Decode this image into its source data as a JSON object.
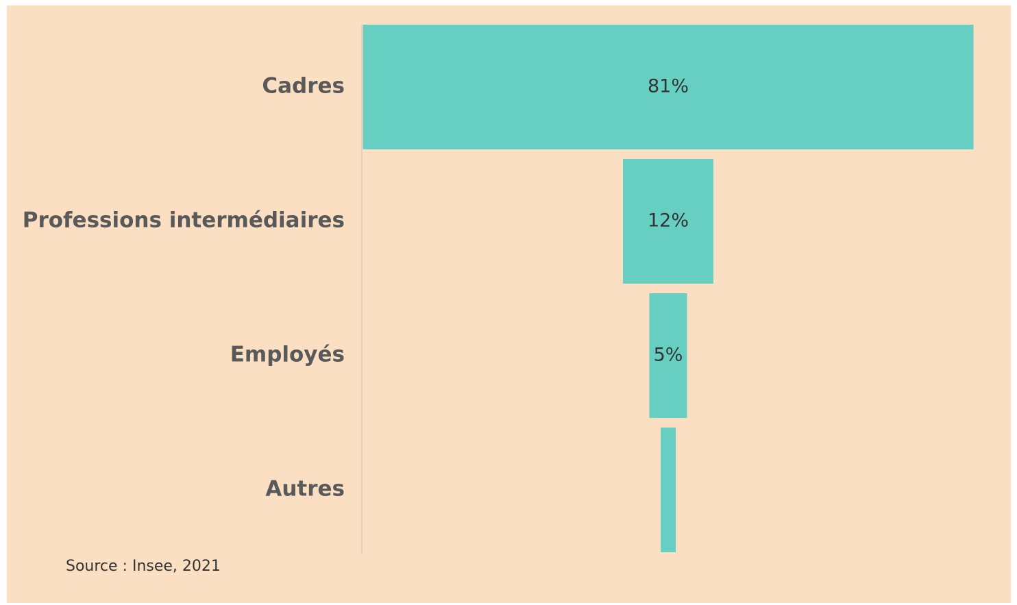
{
  "chart_data": {
    "type": "funnel",
    "categories": [
      "Cadres",
      "Professions intermédiaires",
      "Employés",
      "Autres"
    ],
    "values": [
      81,
      12,
      5,
      2
    ],
    "value_labels": [
      "81%",
      "12%",
      "5%",
      null
    ],
    "color": "#66cfc1",
    "source": "Source : Insee, 2021"
  }
}
